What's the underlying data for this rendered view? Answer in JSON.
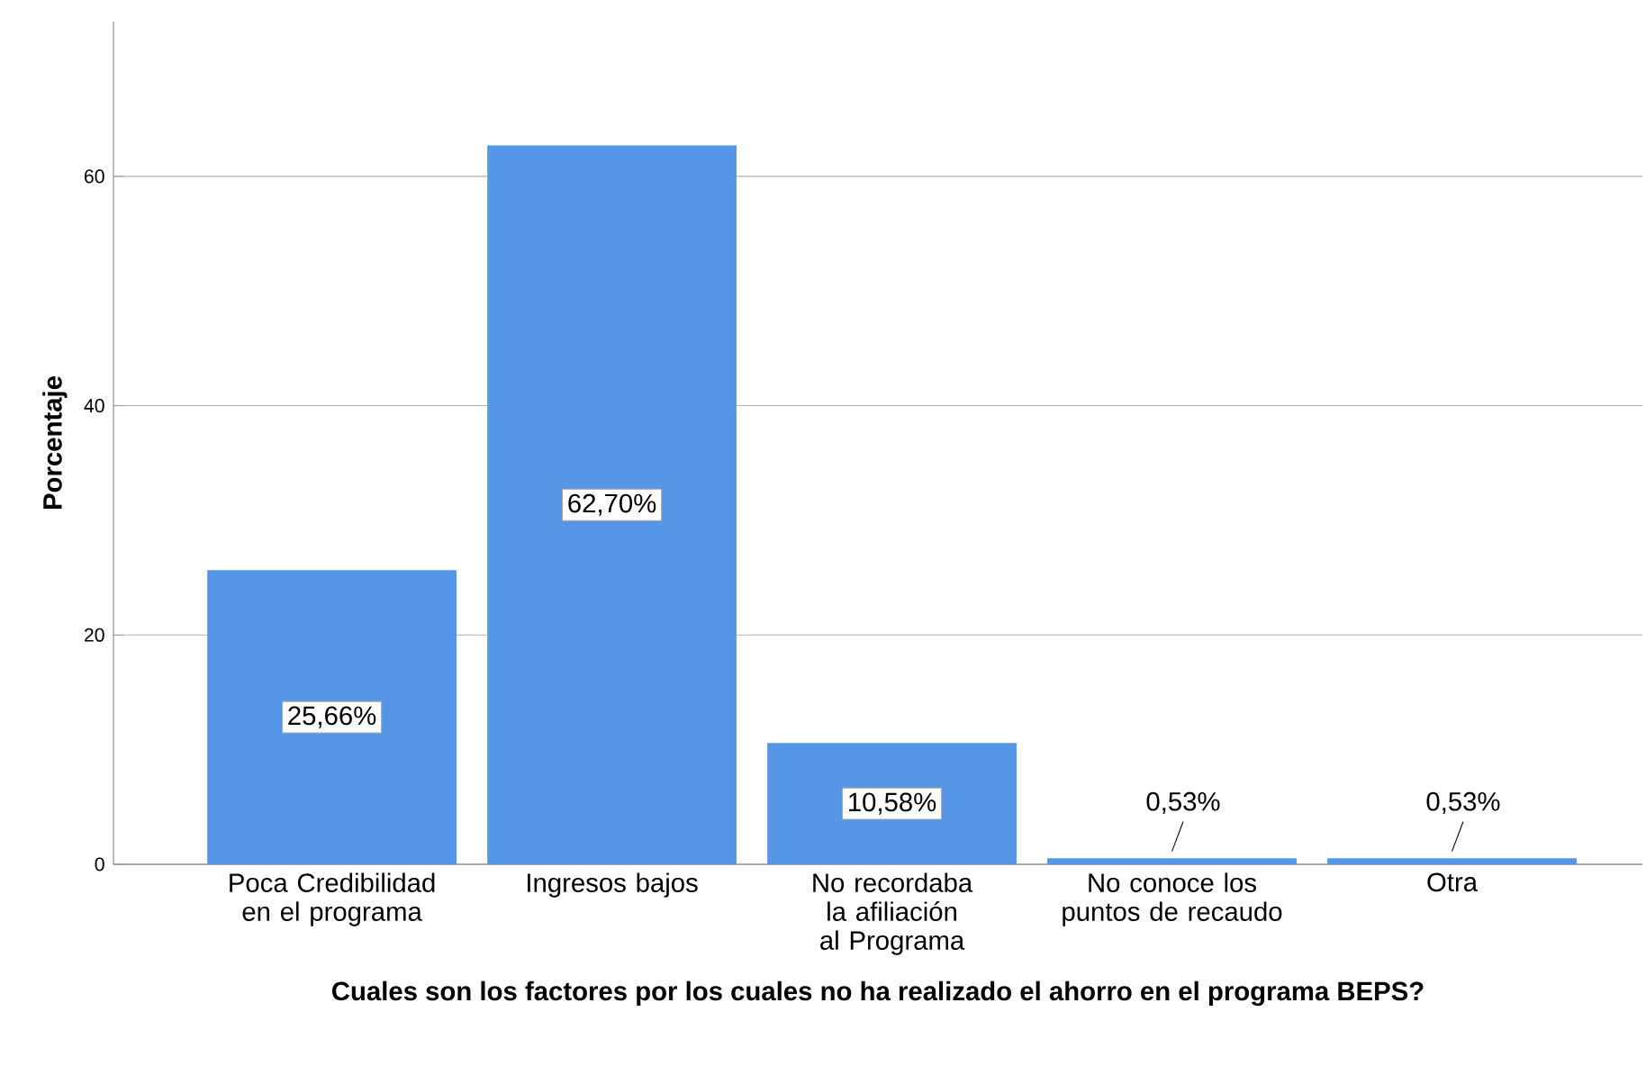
{
  "chart_data": {
    "type": "bar",
    "xlabel": "Cuales son los factores por los cuales no ha realizado el ahorro en el programa BEPS?",
    "ylabel": "Porcentaje",
    "categories": [
      "Poca Credibilidad en el programa",
      "Ingresos bajos",
      "No recordaba la afiliación al Programa",
      "No conoce los puntos de recaudo",
      "Otra"
    ],
    "values": [
      25.66,
      62.7,
      10.58,
      0.53,
      0.53
    ],
    "value_labels": [
      "25,66%",
      "62,70%",
      "10,58%",
      "0,53%",
      "0,53%"
    ],
    "color": "#5596e6",
    "ylim": [
      0,
      73.5
    ],
    "yticks": [
      0,
      20,
      40,
      60
    ],
    "grid": "y"
  }
}
